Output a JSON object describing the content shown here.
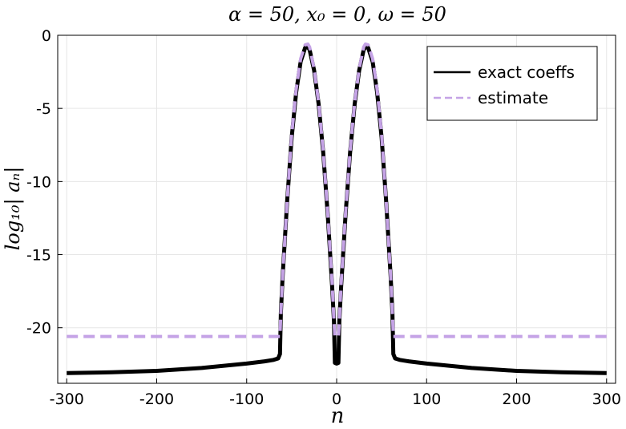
{
  "chart_data": {
    "type": "line",
    "title": "α = 50, x₀ = 0, ω = 50",
    "xlabel": "n",
    "ylabel": "log₁₀| aₙ|",
    "xlim": [
      -310,
      310
    ],
    "ylim": [
      -23.8,
      0
    ],
    "xticks": [
      -300,
      -200,
      -100,
      0,
      100,
      200,
      300
    ],
    "xtick_labels": [
      "-300",
      "-200",
      "-100",
      "0",
      "100",
      "200",
      "300"
    ],
    "yticks": [
      0,
      -5,
      -10,
      -15,
      -20
    ],
    "ytick_labels": [
      "0",
      "-5",
      "-10",
      "-15",
      "-20"
    ],
    "grid": true,
    "legend_position": "top-right",
    "series": [
      {
        "name": "exact coeffs",
        "color": "#000000",
        "style": "solid",
        "x": [
          -300,
          -250,
          -200,
          -150,
          -100,
          -80,
          -70,
          -65,
          -63,
          -62,
          -60,
          -55,
          -50,
          -45,
          -40,
          -35,
          -32,
          -30,
          -25,
          -20,
          -15,
          -10,
          -5,
          -3,
          -2,
          0,
          2,
          3,
          5,
          10,
          15,
          20,
          25,
          30,
          32,
          35,
          40,
          45,
          50,
          55,
          60,
          62,
          63,
          65,
          70,
          80,
          100,
          150,
          200,
          250,
          300
        ],
        "y": [
          -23.1,
          -23.05,
          -22.95,
          -22.75,
          -22.45,
          -22.3,
          -22.2,
          -22.1,
          -21.8,
          -19.0,
          -16.5,
          -11.3,
          -7.0,
          -3.9,
          -1.8,
          -0.85,
          -0.8,
          -1.0,
          -2.4,
          -4.7,
          -8.0,
          -12.2,
          -17.2,
          -19.5,
          -22.4,
          -22.45,
          -22.4,
          -19.5,
          -17.2,
          -12.2,
          -8.0,
          -4.7,
          -2.4,
          -1.0,
          -0.8,
          -0.85,
          -1.8,
          -3.9,
          -7.0,
          -11.3,
          -16.5,
          -19.0,
          -21.8,
          -22.1,
          -22.2,
          -22.3,
          -22.45,
          -22.75,
          -22.95,
          -23.05,
          -23.1
        ]
      },
      {
        "name": "estimate",
        "color": "#c5a3e6",
        "style": "dashed",
        "x": [
          -300,
          -70,
          -65,
          -63,
          -62,
          -60,
          -55,
          -50,
          -45,
          -40,
          -35,
          -32,
          -30,
          -25,
          -20,
          -15,
          -10,
          -5,
          -3,
          -2,
          0,
          2,
          3,
          5,
          10,
          15,
          20,
          25,
          30,
          32,
          35,
          40,
          45,
          50,
          55,
          60,
          62,
          63,
          65,
          70,
          300
        ],
        "y": [
          -20.6,
          -20.6,
          -20.6,
          -20.6,
          -19.0,
          -16.5,
          -11.3,
          -6.8,
          -3.7,
          -1.6,
          -0.65,
          -0.6,
          -0.8,
          -2.3,
          -4.6,
          -7.9,
          -12.1,
          -17.0,
          -19.5,
          -20.6,
          -20.6,
          -20.6,
          -19.5,
          -17.0,
          -12.1,
          -7.9,
          -4.6,
          -2.3,
          -0.8,
          -0.6,
          -0.65,
          -1.6,
          -3.7,
          -6.8,
          -11.3,
          -16.5,
          -19.0,
          -20.6,
          -20.6,
          -20.6,
          -20.6
        ]
      }
    ]
  }
}
